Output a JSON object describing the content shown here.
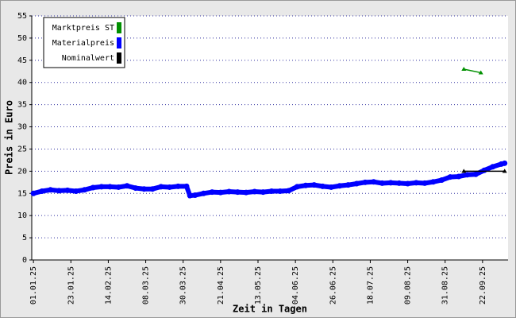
{
  "chart_data": {
    "type": "line",
    "xlabel": "Zeit in Tagen",
    "ylabel": "Preis in Euro",
    "xlim": [
      "31.12.24",
      "07.10.25"
    ],
    "xticks": [
      "01.01.25",
      "23.01.25",
      "14.02.25",
      "08.03.25",
      "30.03.25",
      "21.04.25",
      "13.05.25",
      "04.06.25",
      "26.06.25",
      "18.07.25",
      "09.08.25",
      "31.08.25",
      "22.09.25"
    ],
    "ylim": [
      0,
      55
    ],
    "yticks": [
      0,
      5,
      10,
      15,
      20,
      25,
      30,
      35,
      40,
      45,
      50,
      55
    ],
    "grid": true,
    "legend": "upper left",
    "series": [
      {
        "name": "Marktpreis ST",
        "color": "#009000",
        "x": [
          "11.09.25",
          "21.09.25"
        ],
        "values": [
          43,
          42.2
        ]
      },
      {
        "name": "Materialpreis",
        "color": "#0000ff",
        "x": [
          "01.01.25",
          "06.01.25",
          "11.01.25",
          "16.01.25",
          "21.01.25",
          "26.01.25",
          "31.01.25",
          "05.02.25",
          "10.02.25",
          "15.02.25",
          "20.02.25",
          "25.02.25",
          "02.03.25",
          "07.03.25",
          "12.03.25",
          "17.03.25",
          "22.03.25",
          "27.03.25",
          "01.04.25",
          "03.04.25",
          "06.04.25",
          "11.04.25",
          "16.04.25",
          "21.04.25",
          "26.04.25",
          "01.05.25",
          "06.05.25",
          "11.05.25",
          "16.05.25",
          "21.05.25",
          "26.05.25",
          "31.05.25",
          "05.06.25",
          "10.06.25",
          "15.06.25",
          "20.06.25",
          "25.06.25",
          "30.06.25",
          "05.07.25",
          "10.07.25",
          "15.07.25",
          "20.07.25",
          "25.07.25",
          "30.07.25",
          "04.08.25",
          "09.08.25",
          "14.08.25",
          "19.08.25",
          "24.08.25",
          "29.08.25",
          "03.09.25",
          "08.09.25",
          "13.09.25",
          "18.09.25",
          "23.09.25",
          "28.09.25",
          "03.10.25",
          "05.10.25"
        ],
        "values": [
          15.0,
          15.5,
          15.8,
          15.6,
          15.7,
          15.5,
          15.8,
          16.3,
          16.5,
          16.5,
          16.4,
          16.7,
          16.2,
          16.0,
          16.0,
          16.5,
          16.4,
          16.6,
          16.6,
          14.5,
          14.6,
          15.0,
          15.3,
          15.2,
          15.4,
          15.3,
          15.2,
          15.4,
          15.3,
          15.5,
          15.5,
          15.6,
          16.5,
          16.8,
          16.9,
          16.6,
          16.4,
          16.7,
          16.9,
          17.2,
          17.5,
          17.6,
          17.3,
          17.4,
          17.3,
          17.2,
          17.4,
          17.3,
          17.6,
          18.0,
          18.7,
          18.8,
          19.2,
          19.3,
          20.2,
          21.0,
          21.6,
          21.8
        ]
      },
      {
        "name": "Nominalwert",
        "color": "#000000",
        "x": [
          "11.09.25",
          "05.10.25"
        ],
        "values": [
          20,
          20
        ]
      }
    ]
  }
}
